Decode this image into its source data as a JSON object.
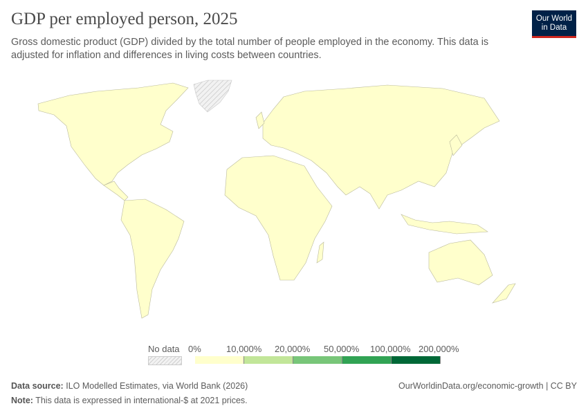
{
  "title": "GDP per employed person, 2025",
  "subtitle": "Gross domestic product (GDP) divided by the total number of people employed in the economy. This data is adjusted for inflation and differences in living costs between countries.",
  "logo": {
    "line1": "Our World",
    "line2": "in Data"
  },
  "legend": {
    "no_data": "No data",
    "ticks": [
      "0%",
      "10,000%",
      "20,000%",
      "50,000%",
      "100,000%",
      "200,000%"
    ],
    "colors": [
      "#ffffcc",
      "#c2e699",
      "#78c679",
      "#31a354",
      "#006837"
    ],
    "no_data_pattern": "hatched-gray"
  },
  "map": {
    "fill_all_countries": "#ffffcc",
    "no_data_region": "Greenland"
  },
  "footer": {
    "source_label": "Data source:",
    "source": "ILO Modelled Estimates, via World Bank (2026)",
    "note_label": "Note:",
    "note": "This data is expressed in international-$ at 2021 prices.",
    "link": "OurWorldinData.org/economic-growth | CC BY"
  }
}
